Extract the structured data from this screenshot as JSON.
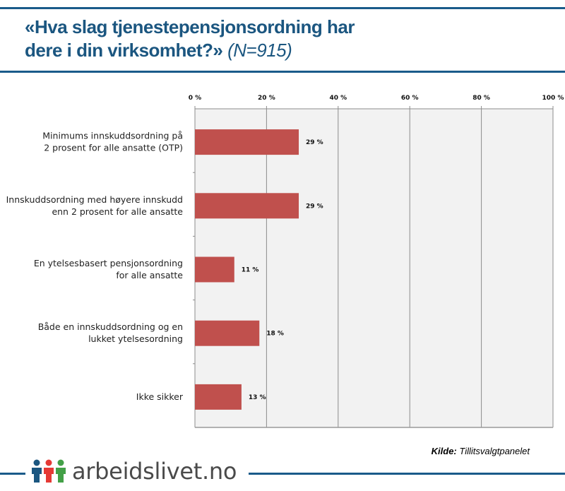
{
  "header": {
    "title_main": "«Hva slag tjenestepensjonsordning har",
    "title_line2": "dere i din virksomhet?»",
    "title_n": "(N=915)"
  },
  "footer": {
    "source_label": "Kilde:",
    "source_value": "Tillitsvalgtpanelet",
    "logo_text": "arbeidslivet.no"
  },
  "colors": {
    "brand_blue": "#1a5b8a",
    "bar": "#c0504d",
    "plot_bg": "#f2f2f2",
    "logo_people": [
      "#1b5680",
      "#e53935",
      "#43a047"
    ]
  },
  "chart_data": {
    "type": "bar",
    "orientation": "horizontal",
    "title": "«Hva slag tjenestepensjonsordning har dere i din virksomhet?» (N=915)",
    "categories": [
      [
        "Minimums innskuddsordning på",
        "2 prosent  for alle ansatte (OTP)"
      ],
      [
        "Innskuddsordning med høyere innskudd",
        "enn  2 prosent for alle ansatte"
      ],
      [
        "En ytelsesbasert pensjonsordning",
        "for  alle ansatte"
      ],
      [
        "Både en innskuddsordning og en",
        "lukket ytelsesordning"
      ],
      [
        "Ikke sikker"
      ]
    ],
    "values": [
      29,
      29,
      11,
      18,
      13
    ],
    "value_labels": [
      "29 %",
      "29 %",
      "11 %",
      "18 %",
      "13 %"
    ],
    "xlim": [
      0,
      100
    ],
    "xticks": [
      0,
      20,
      40,
      60,
      80,
      100
    ],
    "xtick_labels": [
      "0 %",
      "20 %",
      "40 %",
      "60 %",
      "80 %",
      "100 %"
    ],
    "xaxis_position": "top",
    "grid": true,
    "xlabel": "",
    "ylabel": ""
  }
}
